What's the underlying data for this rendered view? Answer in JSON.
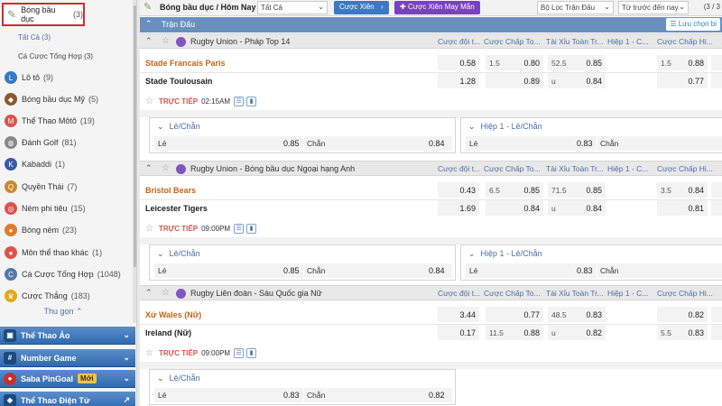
{
  "sidebar": {
    "active": {
      "label": "Bóng bầu dục",
      "count": "(3)"
    },
    "subs": [
      {
        "label": "Tất Cả",
        "count": "(3)"
      },
      {
        "label": "Cá Cược Tổng Hợp",
        "count": "(3)"
      }
    ],
    "items": [
      {
        "label": "Lô tô",
        "count": "(9)",
        "icon": "lotto-icon",
        "color": "#3a78c3",
        "glyph": "L"
      },
      {
        "label": "Bóng bầu dục Mỹ",
        "count": "(5)",
        "icon": "american-football-icon",
        "color": "#8a5a2b",
        "glyph": "◆"
      },
      {
        "label": "Thể Thao Môtô",
        "count": "(19)",
        "icon": "motorsport-icon",
        "color": "#d9534f",
        "glyph": "M"
      },
      {
        "label": "Đánh Golf",
        "count": "(81)",
        "icon": "golf-icon",
        "color": "#888888",
        "glyph": "◍"
      },
      {
        "label": "Kabaddi",
        "count": "(1)",
        "icon": "kabaddi-icon",
        "color": "#3c5aa6",
        "glyph": "K"
      },
      {
        "label": "Quyền Thái",
        "count": "(7)",
        "icon": "muay-thai-icon",
        "color": "#c98a2b",
        "glyph": "Q"
      },
      {
        "label": "Ném phi tiêu",
        "count": "(15)",
        "icon": "darts-icon",
        "color": "#d9534f",
        "glyph": "◎"
      },
      {
        "label": "Bóng ném",
        "count": "(23)",
        "icon": "handball-icon",
        "color": "#e07b2a",
        "glyph": "●"
      },
      {
        "label": "Môn thể thao khác",
        "count": "(1)",
        "icon": "other-sports-icon",
        "color": "#e0524a",
        "glyph": "●"
      },
      {
        "label": "Cá Cược Tổng Hợp",
        "count": "(1048)",
        "icon": "parlay-icon",
        "color": "#5577aa",
        "glyph": "C"
      },
      {
        "label": "Cược Thắng",
        "count": "(183)",
        "icon": "trophy-icon",
        "color": "#e0a81d",
        "glyph": "♛"
      }
    ],
    "collapse_label": "Thu gọn",
    "bars": [
      {
        "label": "Thể Thao Ảo",
        "icon": "virtual-sports-icon"
      },
      {
        "label": "Number Game",
        "icon": "number-game-icon"
      },
      {
        "label": "Saba PinGoal",
        "icon": "pingoal-icon",
        "badge": "Mới"
      },
      {
        "label": "Thể Thao Điện Tử",
        "icon": "esports-icon"
      }
    ]
  },
  "topbar": {
    "title": "Bóng bầu dục / Hôm Nay",
    "filter_all": "Tất Cả",
    "btn_parlay": "Cược Xiên",
    "btn_lucky": "Cược Xiên May Mắn",
    "league_filter": "Bộ Lọc Trận Đấu",
    "sort": "Từ trước đến nay",
    "page": "(3 / 3"
  },
  "section": {
    "title": "Trận Đấu",
    "save_btn": "Lưu chọn bi"
  },
  "columns": [
    "Cược đội t...",
    "Cược Chấp To...",
    "Tài Xỉu Toàn Tr...",
    "Hiệp 1 - C...",
    "Cược Chấp Hi..."
  ],
  "leagues": [
    {
      "name": "Rugby Union - Pháp Top 14",
      "home": "Stade Francais Paris",
      "away": "Stade Toulousain",
      "r1": {
        "ml": "0.58",
        "hcp": "1.5",
        "hcpv": "0.80",
        "ou": "52.5",
        "ouv": "0.85",
        "h1hcp": "1.5",
        "h1v": "0.88"
      },
      "r2": {
        "ml": "1.28",
        "hcpv": "0.89",
        "ou": "u",
        "ouv": "0.84",
        "h1v": "0.77"
      },
      "live": {
        "label": "TRỰC TIẾP",
        "time": "02:15AM"
      },
      "p1": {
        "title": "Lẻ/Chẵn",
        "odd_label": "Lẻ",
        "odd_val": "0.85",
        "even_label": "Chẵn",
        "even_val": "0.84"
      },
      "p2": {
        "title": "Hiệp 1 - Lẻ/Chẵn",
        "odd_label": "Lẻ",
        "odd_val": "0.83",
        "even_label": "Chẵn"
      }
    },
    {
      "name": "Rugby Union - Bóng bầu dục Ngoại hạng Anh",
      "home": "Bristol Bears",
      "away": "Leicester Tigers",
      "r1": {
        "ml": "0.43",
        "hcp": "6.5",
        "hcpv": "0.85",
        "ou": "71.5",
        "ouv": "0.85",
        "h1hcp": "3.5",
        "h1v": "0.84"
      },
      "r2": {
        "ml": "1.69",
        "hcpv": "0.84",
        "ou": "u",
        "ouv": "0.84",
        "h1v": "0.81"
      },
      "live": {
        "label": "TRỰC TIẾP",
        "time": "09:00PM"
      },
      "p1": {
        "title": "Lẻ/Chẵn",
        "odd_label": "Lẻ",
        "odd_val": "0.85",
        "even_label": "Chẵn",
        "even_val": "0.84"
      },
      "p2": {
        "title": "Hiệp 1 - Lẻ/Chẵn",
        "odd_label": "Lẻ",
        "odd_val": "0.83",
        "even_label": "Chẵn"
      }
    },
    {
      "name": "Rugby Liên đoàn - Sáu Quốc gia Nữ",
      "home": "Xứ Wales (Nữ)",
      "away": "Ireland (Nữ)",
      "r1": {
        "ml": "3.44",
        "hcpv": "0.77",
        "ou": "48.5",
        "ouv": "0.83",
        "h1v": "0.82"
      },
      "r2": {
        "ml": "0.17",
        "hcp": "11.5",
        "hcpv": "0.88",
        "ou": "u",
        "ouv": "0.82",
        "h1hcp": "5.5",
        "h1v": "0.83"
      },
      "live": {
        "label": "TRỰC TIẾP",
        "time": "09:00PM"
      },
      "p1": {
        "title": "Lẻ/Chẵn",
        "odd_label": "Lẻ",
        "odd_val": "0.83",
        "even_label": "Chẵn",
        "even_val": "0.82"
      }
    }
  ]
}
